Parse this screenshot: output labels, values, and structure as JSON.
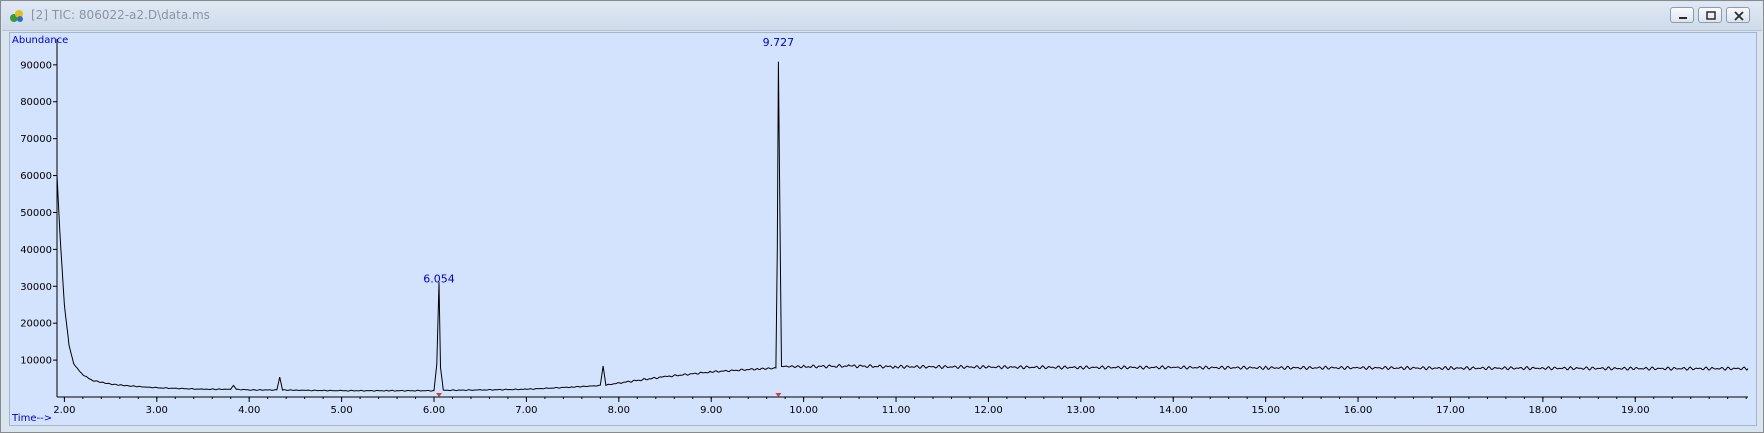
{
  "window": {
    "title": "[2] TIC: 806022-a2.D\\data.ms",
    "icon": "chemstation-app-icon"
  },
  "chart_data": {
    "type": "line",
    "ylabel": "Abundance",
    "xlabel": "Time-->",
    "xlim": [
      1.92,
      20.22
    ],
    "ylim": [
      0,
      97000
    ],
    "x_ticks": [
      "2.00",
      "3.00",
      "4.00",
      "5.00",
      "6.00",
      "7.00",
      "8.00",
      "9.00",
      "10.00",
      "11.00",
      "12.00",
      "13.00",
      "14.00",
      "15.00",
      "16.00",
      "17.00",
      "18.00",
      "19.00"
    ],
    "y_ticks": [
      "10000",
      "20000",
      "30000",
      "40000",
      "50000",
      "60000",
      "70000",
      "80000",
      "90000"
    ],
    "peak_labels": [
      {
        "x": 6.054,
        "y": 30000,
        "label": "6.054"
      },
      {
        "x": 9.727,
        "y": 94000,
        "label": "9.727"
      }
    ],
    "series": [
      {
        "values": [
          [
            1.92,
            60000
          ],
          [
            1.95,
            45000
          ],
          [
            2.0,
            25000
          ],
          [
            2.05,
            14000
          ],
          [
            2.1,
            9000
          ],
          [
            2.2,
            6000
          ],
          [
            2.3,
            4500
          ],
          [
            2.5,
            3500
          ],
          [
            2.7,
            3000
          ],
          [
            3.0,
            2500
          ],
          [
            3.5,
            2100
          ],
          [
            3.8,
            2100
          ],
          [
            3.83,
            3200
          ],
          [
            3.86,
            2100
          ],
          [
            4.0,
            1900
          ],
          [
            4.3,
            1900
          ],
          [
            4.33,
            5500
          ],
          [
            4.36,
            1900
          ],
          [
            4.6,
            1800
          ],
          [
            5.0,
            1700
          ],
          [
            5.5,
            1700
          ],
          [
            6.0,
            1700
          ],
          [
            6.03,
            9000
          ],
          [
            6.054,
            31000
          ],
          [
            6.07,
            8000
          ],
          [
            6.1,
            1800
          ],
          [
            6.5,
            1900
          ],
          [
            7.0,
            2100
          ],
          [
            7.5,
            2700
          ],
          [
            7.8,
            3100
          ],
          [
            7.83,
            8500
          ],
          [
            7.86,
            3200
          ],
          [
            8.0,
            3800
          ],
          [
            8.5,
            5500
          ],
          [
            9.0,
            6800
          ],
          [
            9.5,
            7600
          ],
          [
            9.7,
            7800
          ],
          [
            9.715,
            40000
          ],
          [
            9.727,
            91000
          ],
          [
            9.74,
            58000
          ],
          [
            9.76,
            8300
          ],
          [
            10.0,
            8200
          ],
          [
            10.5,
            8400
          ],
          [
            11.0,
            8200
          ],
          [
            12.0,
            8100
          ],
          [
            13.0,
            8000
          ],
          [
            14.0,
            8000
          ],
          [
            15.0,
            7900
          ],
          [
            16.0,
            7900
          ],
          [
            17.0,
            7800
          ],
          [
            18.0,
            7800
          ],
          [
            19.0,
            7700
          ],
          [
            20.22,
            7700
          ]
        ]
      }
    ]
  }
}
